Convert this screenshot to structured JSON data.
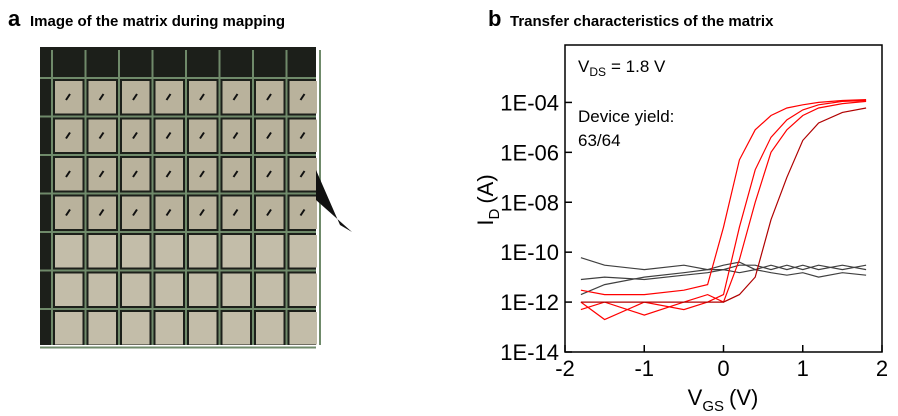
{
  "panel_a": {
    "label": "a",
    "title": "Image of the matrix during mapping"
  },
  "chart_data": {
    "type": "line",
    "panel_label": "b",
    "title": "Transfer characteristics of the matrix",
    "xlabel": {
      "main": "V",
      "sub": "GS",
      "unit": "(V)"
    },
    "ylabel": {
      "main": "I",
      "sub": "D",
      "unit": "(A)"
    },
    "annotations": {
      "bias": {
        "main": "V",
        "sub": "DS",
        "rest": "= 1.8 V"
      },
      "yield_label": "Device yield:",
      "yield_value": "63/64"
    },
    "yscale": "log",
    "xlim": [
      -2,
      2
    ],
    "ylim": [
      1e-14,
      0.02
    ],
    "xticks": [
      -2,
      -1,
      0,
      1,
      2
    ],
    "yticks": [
      {
        "value": 1e-14,
        "label": "1E-14"
      },
      {
        "value": 1e-12,
        "label": "1E-12"
      },
      {
        "value": 1e-10,
        "label": "1E-10"
      },
      {
        "value": 1e-08,
        "label": "1E-08"
      },
      {
        "value": 1e-06,
        "label": "1E-06"
      },
      {
        "value": 0.0001,
        "label": "1E-04"
      }
    ],
    "x": [
      -1.8,
      -1.5,
      -1.0,
      -0.5,
      -0.2,
      0.0,
      0.2,
      0.4,
      0.6,
      0.8,
      1.0,
      1.2,
      1.5,
      1.8
    ],
    "series": [
      {
        "color": "#404040",
        "values": [
          6e-11,
          3e-11,
          2e-11,
          3e-11,
          2e-11,
          3e-11,
          4e-11,
          2e-11,
          3e-11,
          2e-11,
          3e-11,
          2e-11,
          3e-11,
          2e-11
        ]
      },
      {
        "color": "#404040",
        "values": [
          2e-12,
          5e-12,
          1e-11,
          1.5e-11,
          2e-11,
          2e-11,
          3e-11,
          3e-11,
          2e-11,
          3e-11,
          2e-11,
          3e-11,
          2e-11,
          3e-11
        ]
      },
      {
        "color": "#404040",
        "values": [
          8e-12,
          1e-11,
          8e-12,
          1.2e-11,
          1.5e-11,
          2e-11,
          1.5e-11,
          2e-11,
          1.5e-11,
          1.2e-11,
          1.5e-11,
          1e-11,
          1.5e-11,
          1.2e-11
        ]
      },
      {
        "color": "#ff0000",
        "values": [
          3e-12,
          2e-12,
          2e-12,
          3e-12,
          5e-12,
          1e-09,
          5e-07,
          8e-06,
          3e-05,
          6e-05,
          8e-05,
          0.0001,
          0.00012,
          0.00013
        ]
      },
      {
        "color": "#ff0000",
        "values": [
          1e-12,
          2e-13,
          1e-12,
          5e-13,
          1e-12,
          2e-12,
          1e-09,
          2e-07,
          4e-06,
          2e-05,
          5e-05,
          8e-05,
          0.00011,
          0.00012
        ]
      },
      {
        "color": "#ff0000",
        "values": [
          5e-13,
          1e-12,
          3e-13,
          1e-12,
          2e-12,
          1e-12,
          5e-11,
          1e-08,
          1e-06,
          8e-06,
          3e-05,
          6e-05,
          9e-05,
          0.00011
        ]
      },
      {
        "color": "#b00000",
        "values": [
          1e-12,
          1e-12,
          1e-12,
          1e-12,
          1e-12,
          1e-12,
          2e-12,
          1e-11,
          2e-09,
          1e-07,
          3e-06,
          1.5e-05,
          4e-05,
          6e-05
        ]
      }
    ]
  }
}
